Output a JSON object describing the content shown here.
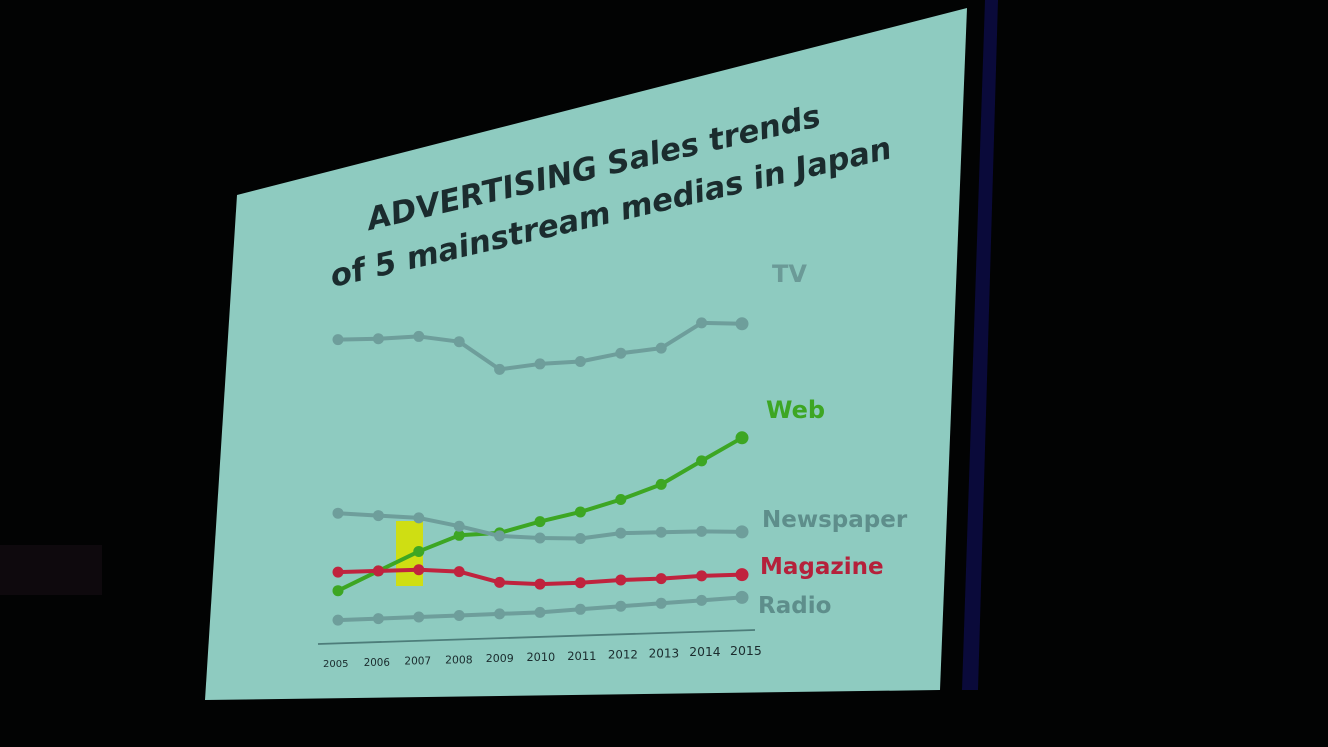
{
  "slide": {
    "title_line1": "ADVERTISING Sales trends",
    "title_line2": "of 5 mainstream medias in Japan",
    "background_color": "#8ecbc0",
    "highlight_color": "#d6e000",
    "highlight_year": "2007"
  },
  "chart_data": {
    "type": "line",
    "title": "ADVERTISING Sales trends of 5 mainstream medias in Japan",
    "xlabel": "",
    "ylabel": "",
    "categories": [
      "2005",
      "2006",
      "2007",
      "2008",
      "2009",
      "2010",
      "2011",
      "2012",
      "2013",
      "2014",
      "2015"
    ],
    "grid": false,
    "legend_position": "inline-right",
    "units": "relative (no y-axis shown)",
    "series": [
      {
        "name": "TV",
        "color": "#6e9e9b",
        "values": [
          84,
          84.5,
          85.5,
          84,
          75,
          77,
          78,
          81,
          83,
          92,
          92
        ]
      },
      {
        "name": "Web",
        "color": "#3da623",
        "values": [
          3,
          9,
          15,
          20,
          20.5,
          24,
          27,
          31,
          36,
          44,
          52
        ]
      },
      {
        "name": "Newspaper",
        "color": "#6e9e9b",
        "values": [
          28,
          27,
          26,
          23,
          19.5,
          18.5,
          18,
          19.5,
          19.5,
          19.5,
          19
        ]
      },
      {
        "name": "Magazine",
        "color": "#c0233e",
        "values": [
          9,
          9,
          9,
          8,
          4,
          3,
          3,
          3.5,
          3.5,
          4,
          4
        ]
      },
      {
        "name": "Radio",
        "color": "#6e9e9b",
        "values": [
          -6.5,
          -6.5,
          -6.5,
          -6.5,
          -6.5,
          -6.5,
          -6,
          -5.5,
          -5,
          -4.5,
          -4
        ]
      }
    ]
  },
  "legend": {
    "tv": "TV",
    "web": "Web",
    "newspaper": "Newspaper",
    "magazine": "Magazine",
    "radio": "Radio"
  },
  "x_ticks": [
    "2005",
    "2006",
    "2007",
    "2008",
    "2009",
    "2010",
    "2011",
    "2012",
    "2013",
    "2014",
    "2015"
  ]
}
